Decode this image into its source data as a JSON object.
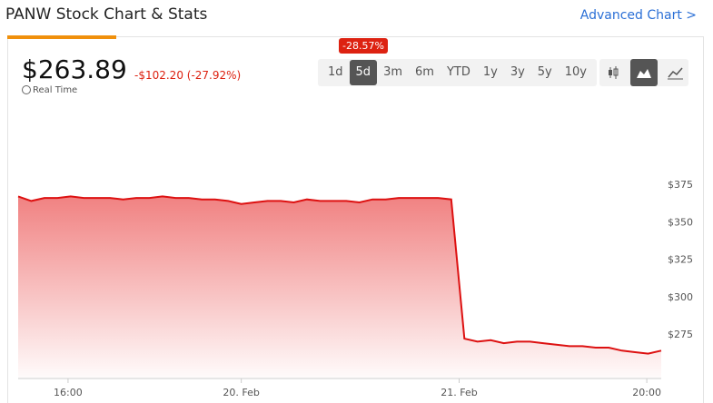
{
  "header": {
    "title": "PANW Stock Chart & Stats",
    "link": "Advanced Chart >",
    "price": "$263.89",
    "change": "-$102.20 (-27.92%)",
    "realtime": "Real Time",
    "range_change": "-28.57%",
    "ranges": [
      "1d",
      "5d",
      "3m",
      "6m",
      "YTD",
      "1y",
      "3y",
      "5y",
      "10y"
    ],
    "active_range": "5d"
  },
  "chart_data": {
    "type": "area",
    "color": "#dd1111",
    "x": [
      0,
      1,
      2,
      3,
      4,
      5,
      6,
      7,
      8,
      9,
      10,
      11,
      12,
      13,
      14,
      15,
      16,
      17,
      18,
      19,
      20,
      21,
      22,
      23,
      24,
      25,
      26,
      27,
      28,
      29,
      30,
      31,
      32,
      33,
      34,
      35,
      36,
      37,
      38,
      39,
      40,
      41,
      42,
      43,
      44,
      45,
      46,
      47,
      48,
      49
    ],
    "values": [
      367,
      364,
      366,
      366,
      367,
      366,
      366,
      366,
      365,
      366,
      366,
      367,
      366,
      366,
      365,
      365,
      364,
      362,
      363,
      364,
      364,
      363,
      365,
      364,
      364,
      364,
      363,
      365,
      365,
      366,
      366,
      366,
      366,
      365,
      272,
      270,
      271,
      269,
      270,
      270,
      269,
      268,
      267,
      267,
      266,
      266,
      264,
      263,
      262,
      264
    ],
    "xlim": [
      0,
      49
    ],
    "xticks": [
      {
        "value": 3.8,
        "label": "16:00"
      },
      {
        "value": 17,
        "label": "20. Feb"
      },
      {
        "value": 33.6,
        "label": "21. Feb"
      },
      {
        "value": 47.9,
        "label": "20:00"
      }
    ],
    "ylim": [
      246,
      420
    ],
    "yticks": [
      {
        "value": 275,
        "label": "$275"
      },
      {
        "value": 300,
        "label": "$300"
      },
      {
        "value": 325,
        "label": "$325"
      },
      {
        "value": 350,
        "label": "$350"
      },
      {
        "value": 375,
        "label": "$375"
      }
    ]
  }
}
